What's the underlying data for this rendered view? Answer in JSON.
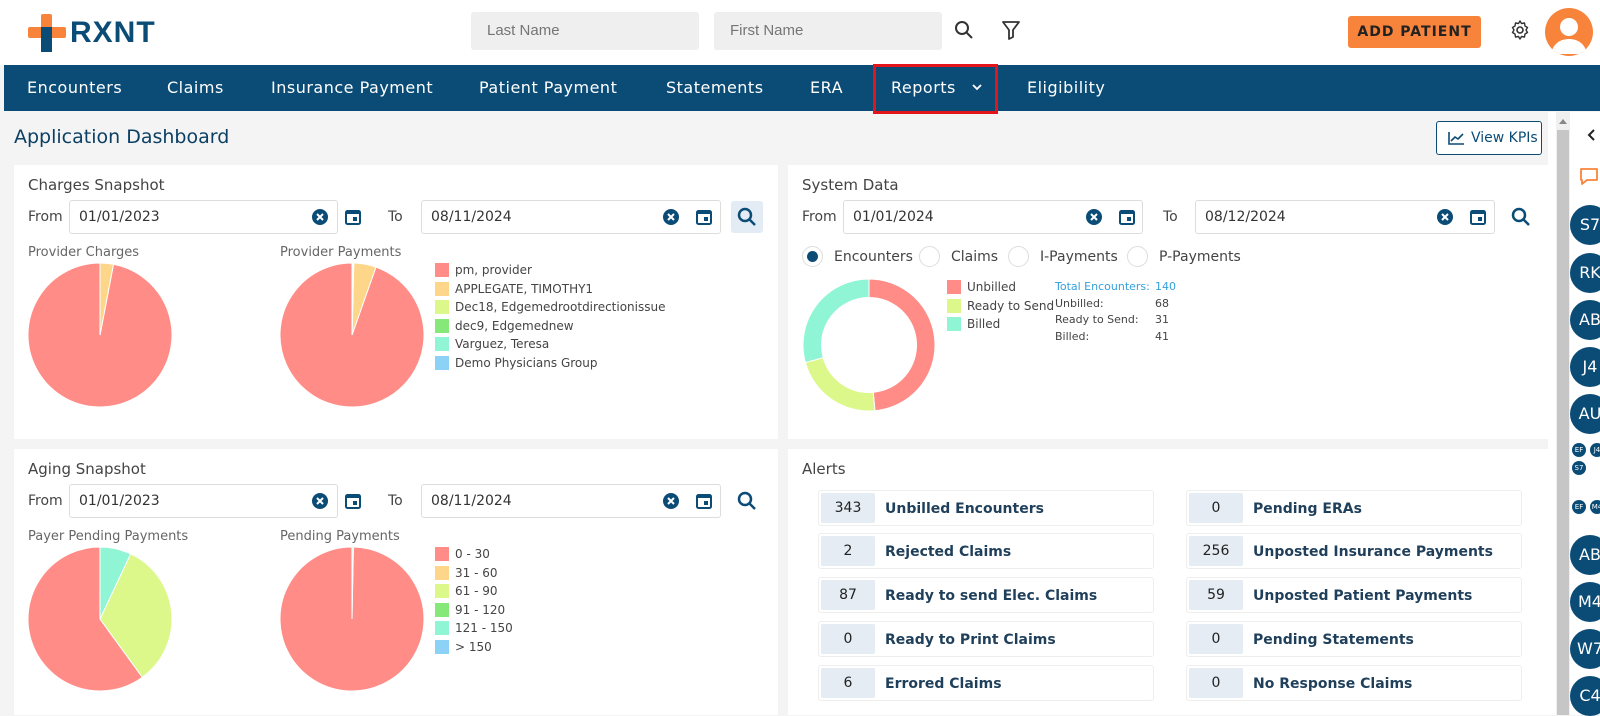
{
  "brand": {
    "name": "RXNT",
    "color": "#0b4c77",
    "accent": "#f8843b"
  },
  "search": {
    "last_placeholder": "Last Name",
    "first_placeholder": "First Name"
  },
  "header": {
    "add_patient": "ADD PATIENT"
  },
  "nav": {
    "items": [
      "Encounters",
      "Claims",
      "Insurance Payment",
      "Patient Payment",
      "Statements",
      "ERA",
      "Reports",
      "Eligibility"
    ]
  },
  "page": {
    "title": "Application Dashboard",
    "view_kpis": "View KPIs"
  },
  "charges": {
    "title": "Charges Snapshot",
    "from_label": "From",
    "to_label": "To",
    "from": "01/01/2023",
    "to": "08/11/2024",
    "chart1_title": "Provider Charges",
    "chart2_title": "Provider Payments",
    "legend": [
      "pm, provider",
      "APPLEGATE, TIMOTHY1",
      "Dec18, Edgemedrootdirectionissue",
      "dec9, Edgemednew",
      "Varguez, Teresa",
      "Demo Physicians Group"
    ]
  },
  "system": {
    "title": "System Data",
    "from_label": "From",
    "to_label": "To",
    "from": "01/01/2024",
    "to": "08/12/2024",
    "radios": [
      "Encounters",
      "Claims",
      "I-Payments",
      "P-Payments"
    ],
    "legend": [
      "Unbilled",
      "Ready to Send",
      "Billed"
    ],
    "total_label": "Total Encounters:",
    "total": "140",
    "stats": [
      {
        "k": "Unbilled:",
        "v": "68"
      },
      {
        "k": "Ready to Send:",
        "v": "31"
      },
      {
        "k": "Billed:",
        "v": "41"
      }
    ]
  },
  "aging": {
    "title": "Aging Snapshot",
    "from_label": "From",
    "to_label": "To",
    "from": "01/01/2023",
    "to": "08/11/2024",
    "chart1_title": "Payer Pending Payments",
    "chart2_title": "Pending Payments",
    "legend": [
      "0 - 30",
      "31 - 60",
      "61 - 90",
      "91 - 120",
      "121 - 150",
      "> 150"
    ]
  },
  "alerts": {
    "title": "Alerts",
    "left": [
      {
        "count": "343",
        "label": "Unbilled Encounters"
      },
      {
        "count": "2",
        "label": "Rejected Claims"
      },
      {
        "count": "87",
        "label": "Ready to send Elec. Claims"
      },
      {
        "count": "0",
        "label": "Ready to Print Claims"
      },
      {
        "count": "6",
        "label": "Errored Claims"
      }
    ],
    "right": [
      {
        "count": "0",
        "label": "Pending ERAs"
      },
      {
        "count": "256",
        "label": "Unposted Insurance Payments"
      },
      {
        "count": "59",
        "label": "Unposted Patient Payments"
      },
      {
        "count": "0",
        "label": "Pending Statements"
      },
      {
        "count": "0",
        "label": "No Response Claims"
      }
    ]
  },
  "rail": {
    "top": [
      "S7",
      "RK",
      "AB",
      "J4",
      "AU"
    ],
    "mini1": [
      "EF",
      "J4"
    ],
    "mini2": [
      "S7"
    ],
    "mini3": [
      "EF",
      "M4"
    ],
    "bottom": [
      "AB",
      "M4",
      "W7",
      "C4"
    ]
  },
  "colors": {
    "c1": "#ff8c86",
    "c2": "#fdd68a",
    "c3": "#dcf88a",
    "c4": "#86e879",
    "c5": "#8ff5d4",
    "c6": "#8cd2f7"
  },
  "chart_data": [
    {
      "type": "pie",
      "title": "Provider Charges",
      "categories": [
        "pm, provider",
        "APPLEGATE, TIMOTHY1"
      ],
      "values": [
        97,
        3
      ]
    },
    {
      "type": "pie",
      "title": "Provider Payments",
      "categories": [
        "pm, provider",
        "APPLEGATE, TIMOTHY1",
        "Dec18, Edgemedrootdirectionissue",
        "dec9, Edgemednew",
        "Varguez, Teresa",
        "Demo Physicians Group"
      ],
      "values": [
        94.6,
        5,
        0.1,
        0.1,
        0.2,
        0
      ]
    },
    {
      "type": "pie",
      "title": "",
      "categories": [
        "Unbilled",
        "Ready to Send",
        "Billed"
      ],
      "values": [
        68,
        31,
        41
      ]
    },
    {
      "type": "pie",
      "title": "Payer Pending Payments",
      "categories": [
        "0 - 30",
        "61 - 90",
        "121 - 150"
      ],
      "values": [
        60,
        33,
        7
      ]
    },
    {
      "type": "pie",
      "title": "Pending Payments",
      "categories": [
        "0 - 30",
        "121 - 150"
      ],
      "values": [
        99.7,
        0.3
      ]
    }
  ]
}
